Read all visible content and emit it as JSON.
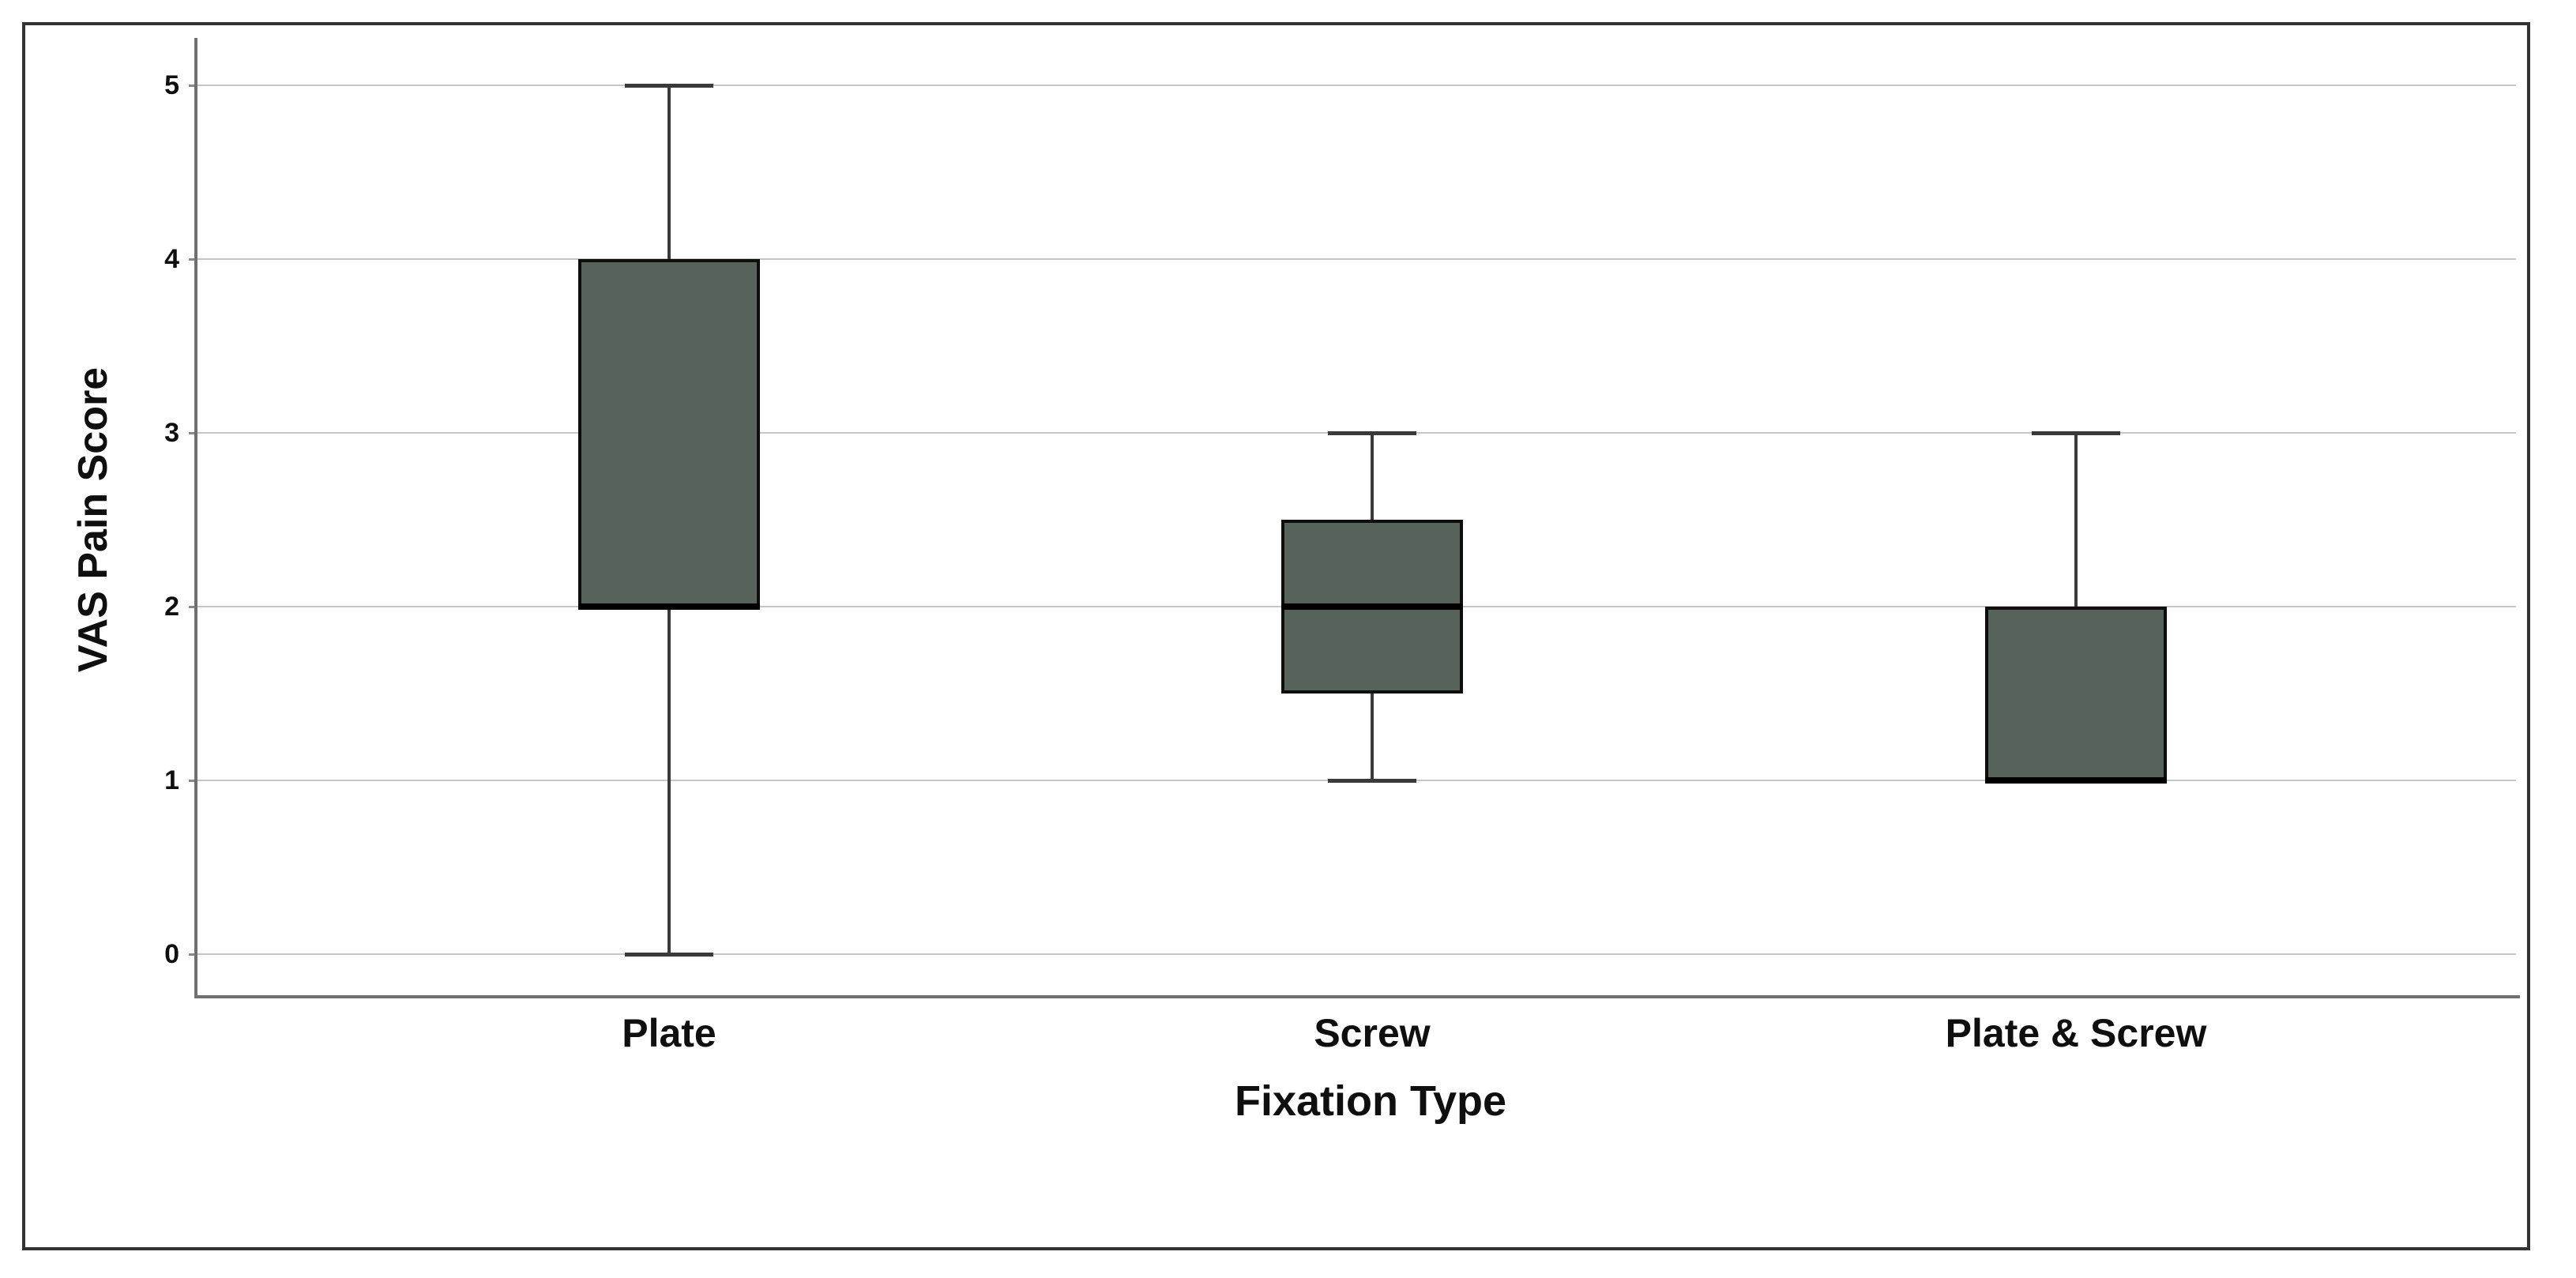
{
  "figure": {
    "background": "#ffffff",
    "frame_color": "#333333"
  },
  "chart_data": {
    "type": "box",
    "title": "",
    "xlabel": "Fixation Type",
    "ylabel": "VAS Pain Score",
    "ylim": [
      0,
      5
    ],
    "yticks": [
      "0",
      "1",
      "2",
      "3",
      "4",
      "5"
    ],
    "grid": "horizontal",
    "legend": "none",
    "categories": [
      "Plate",
      "Screw",
      "Plate & Screw"
    ],
    "series": [
      {
        "category": "Plate",
        "whisker_low": 0,
        "q1": 2,
        "median": 2,
        "q3": 4,
        "whisker_high": 5
      },
      {
        "category": "Screw",
        "whisker_low": 1,
        "q1": 1.5,
        "median": 2,
        "q3": 2.5,
        "whisker_high": 3
      },
      {
        "category": "Plate & Screw",
        "whisker_low": 1,
        "q1": 1,
        "median": 1,
        "q3": 2,
        "whisker_high": 3
      }
    ],
    "colors": {
      "box_fill": "#56625a",
      "box_border": "#0d0d0d",
      "median": "#000000",
      "whisker": "#3a3a3a",
      "gridline": "#c6c6c6",
      "axis": "#707070",
      "frame": "#333333",
      "text": "#0f0f0f"
    }
  }
}
